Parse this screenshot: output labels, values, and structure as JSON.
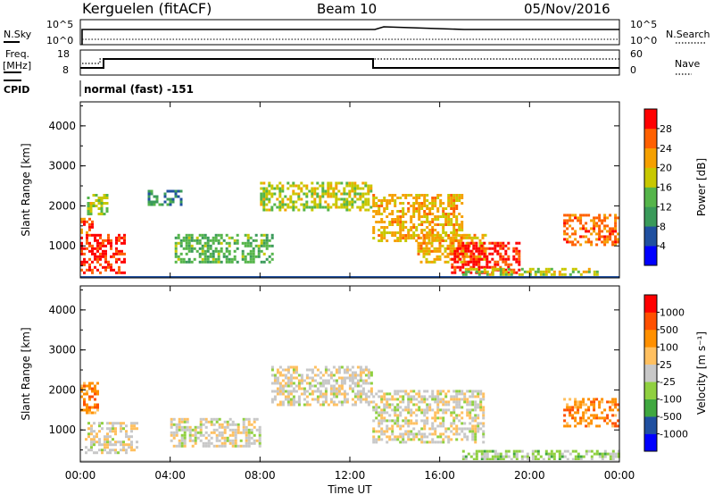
{
  "header": {
    "station": "Kerguelen (fitACF)",
    "beam": "Beam 10",
    "date": "05/Nov/2016"
  },
  "noise_panel": {
    "left_label": "N.Sky",
    "right_label": "N.Search",
    "top_tick": "10^5",
    "bottom_tick": "10^0",
    "right_top_tick": "10^5",
    "right_bottom_tick": "10^0"
  },
  "freq_panel": {
    "left_label_line1": "Freq.",
    "left_label_line2": "[MHz]",
    "right_label": "Nave",
    "left_ticks": [
      "18",
      "8"
    ],
    "right_ticks": [
      "60",
      "0"
    ]
  },
  "cpid": {
    "label": "CPID",
    "value": "normal (fast) -151"
  },
  "colors": {
    "power": [
      "#0000ff",
      "#2050a0",
      "#3a9a5a",
      "#55b54a",
      "#c8c800",
      "#f5a000",
      "#ff6000",
      "#ff0000"
    ],
    "velocity": [
      "#ff0000",
      "#ff5000",
      "#ff9000",
      "#ffc060",
      "#c8c8c8",
      "#90d040",
      "#40a840",
      "#2050a0",
      "#0000ff"
    ],
    "ground": "#c8c8c8"
  },
  "chart_data": [
    {
      "type": "heatmap",
      "title": "Power",
      "ylabel": "Slant Range [km]",
      "xlabel": "Time UT",
      "yticks": [
        "1000",
        "2000",
        "3000",
        "4000"
      ],
      "ylim": [
        200,
        4600
      ],
      "xlim": [
        0,
        24
      ],
      "xticks": [
        "00:00",
        "04:00",
        "08:00",
        "12:00",
        "16:00",
        "20:00",
        "00:00"
      ],
      "colorbar_label": "Power [dB]",
      "colorbar_ticks": [
        "4",
        "8",
        "12",
        "16",
        "20",
        "24",
        "28"
      ],
      "regions": [
        {
          "t0": 0.0,
          "t1": 2.0,
          "r0": 300,
          "r1": 1300,
          "level": 7
        },
        {
          "t0": 0.0,
          "t1": 0.5,
          "r0": 1300,
          "r1": 1700,
          "level": 6
        },
        {
          "t0": 0.3,
          "t1": 1.2,
          "r0": 1800,
          "r1": 2300,
          "level": 4
        },
        {
          "t0": 3.0,
          "t1": 4.5,
          "r0": 2000,
          "r1": 2400,
          "level": 2
        },
        {
          "t0": 4.2,
          "t1": 8.5,
          "r0": 600,
          "r1": 1300,
          "level": 3
        },
        {
          "t0": 8.0,
          "t1": 13.0,
          "r0": 1900,
          "r1": 2600,
          "level": 4
        },
        {
          "t0": 13.0,
          "t1": 17.0,
          "r0": 1100,
          "r1": 2300,
          "level": 5
        },
        {
          "t0": 15.0,
          "t1": 18.0,
          "r0": 600,
          "r1": 1300,
          "level": 5
        },
        {
          "t0": 16.5,
          "t1": 19.5,
          "r0": 350,
          "r1": 1100,
          "level": 7
        },
        {
          "t0": 17.0,
          "t1": 23.0,
          "r0": 300,
          "r1": 450,
          "level": 4
        },
        {
          "t0": 21.5,
          "t1": 24.0,
          "r0": 1000,
          "r1": 1800,
          "level": 6
        }
      ]
    },
    {
      "type": "heatmap",
      "title": "Velocity",
      "ylabel": "Slant Range [km]",
      "xlabel": "Time UT",
      "yticks": [
        "1000",
        "2000",
        "3000",
        "4000"
      ],
      "ylim": [
        200,
        4600
      ],
      "xlim": [
        0,
        24
      ],
      "xticks": [
        "00:00",
        "04:00",
        "08:00",
        "12:00",
        "16:00",
        "20:00",
        "00:00"
      ],
      "colorbar_label": "Velocity [m s⁻¹]",
      "colorbar_ticks": [
        "1000",
        "500",
        "100",
        "25",
        "-25",
        "-100",
        "-500",
        "-1000"
      ],
      "regions": [
        {
          "t0": 0.2,
          "t1": 2.5,
          "r0": 400,
          "r1": 1200,
          "level": 4
        },
        {
          "t0": 0.0,
          "t1": 0.8,
          "r0": 1400,
          "r1": 2200,
          "level": 2
        },
        {
          "t0": 4.0,
          "t1": 8.0,
          "r0": 600,
          "r1": 1300,
          "level": 4
        },
        {
          "t0": 8.5,
          "t1": 13.0,
          "r0": 1600,
          "r1": 2600,
          "level": 4
        },
        {
          "t0": 13.0,
          "t1": 18.0,
          "r0": 700,
          "r1": 2000,
          "level": 4
        },
        {
          "t0": 17.0,
          "t1": 24.0,
          "r0": 250,
          "r1": 500,
          "level": 5
        },
        {
          "t0": 21.5,
          "t1": 24.0,
          "r0": 1100,
          "r1": 1800,
          "level": 2
        }
      ]
    }
  ],
  "xaxis": {
    "title": "Time UT",
    "ticks": [
      "00:00",
      "04:00",
      "08:00",
      "12:00",
      "16:00",
      "20:00",
      "00:00"
    ]
  }
}
